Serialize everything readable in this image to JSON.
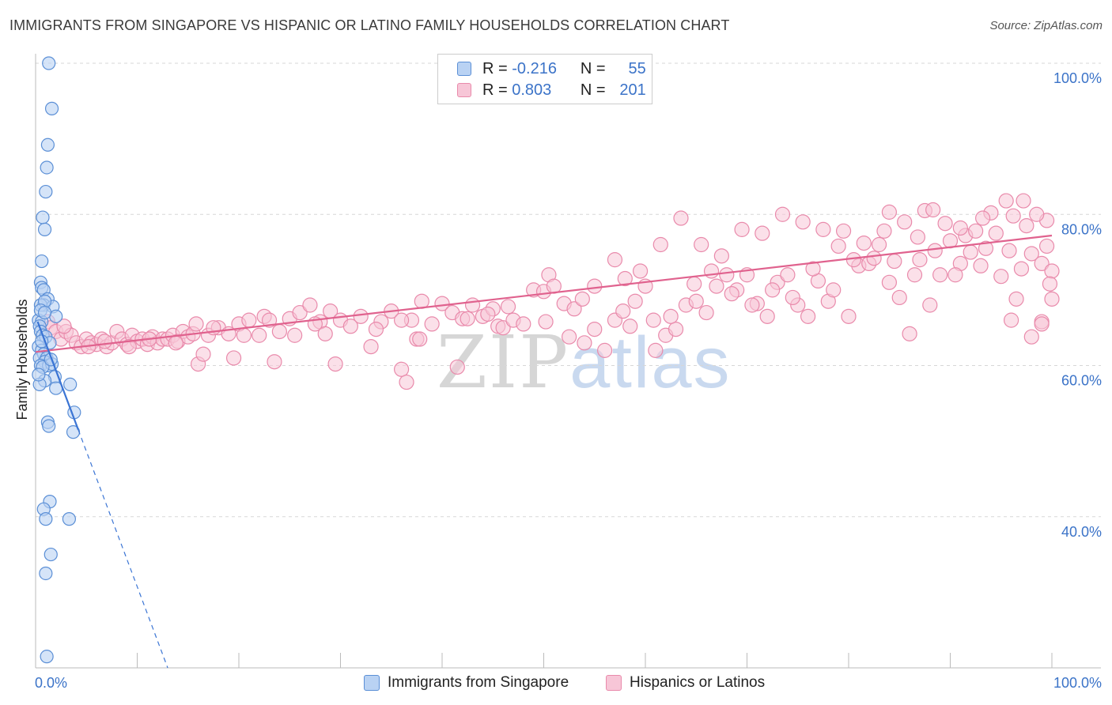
{
  "title": "IMMIGRANTS FROM SINGAPORE VS HISPANIC OR LATINO FAMILY HOUSEHOLDS CORRELATION CHART",
  "source": "Source: ZipAtlas.com",
  "watermark": {
    "zip": "ZIP",
    "atlas": "atlas"
  },
  "legend": {
    "rows": [
      {
        "r_label": "R =",
        "r_value": "-0.216",
        "n_label": "N =",
        "n_value": "55"
      },
      {
        "r_label": "R =",
        "r_value": "0.803",
        "n_label": "N =",
        "n_value": "201"
      }
    ]
  },
  "bottom_legend": {
    "series1": "Immigrants from Singapore",
    "series2": "Hispanics or Latinos"
  },
  "colors": {
    "blue_fill": "#b9d2f3",
    "blue_stroke": "#5b8fd6",
    "blue_line": "#3a74d4",
    "pink_fill": "#f7c6d7",
    "pink_stroke": "#e98aab",
    "pink_line": "#e0628e",
    "grid": "#d7d7d7",
    "tick_label": "#3b73c8"
  },
  "chart_data": {
    "type": "scatter",
    "title": "IMMIGRANTS FROM SINGAPORE VS HISPANIC OR LATINO FAMILY HOUSEHOLDS CORRELATION CHART",
    "xlabel": "",
    "ylabel": "Family Households",
    "xlim": [
      0,
      100
    ],
    "ylim": [
      20,
      100
    ],
    "x_tick_labels": [
      "0.0%",
      "100.0%"
    ],
    "y_ticks": [
      {
        "value": 100,
        "label": "100.0%"
      },
      {
        "value": 80,
        "label": "80.0%"
      },
      {
        "value": 60,
        "label": "60.0%"
      },
      {
        "value": 40,
        "label": "40.0%"
      }
    ],
    "series": [
      {
        "name": "Immigrants from Singapore",
        "r": -0.216,
        "n": 55,
        "trend": {
          "x0": 0.2,
          "y0": 65.8,
          "x1": 4.2,
          "y1": 51.5,
          "dash_x1": 13.0,
          "dash_y1": 20.0
        },
        "points": [
          [
            1.3,
            100.0
          ],
          [
            1.6,
            94.0
          ],
          [
            1.2,
            89.2
          ],
          [
            1.1,
            86.2
          ],
          [
            1.0,
            83.0
          ],
          [
            0.7,
            79.6
          ],
          [
            0.9,
            78.0
          ],
          [
            0.6,
            73.8
          ],
          [
            0.5,
            71.0
          ],
          [
            0.6,
            70.3
          ],
          [
            0.8,
            70.0
          ],
          [
            1.2,
            68.8
          ],
          [
            0.8,
            68.0
          ],
          [
            1.7,
            67.8
          ],
          [
            0.5,
            68.0
          ],
          [
            0.9,
            68.5
          ],
          [
            2.0,
            66.5
          ],
          [
            0.3,
            66.0
          ],
          [
            0.6,
            65.8
          ],
          [
            0.4,
            65.2
          ],
          [
            0.5,
            64.5
          ],
          [
            0.7,
            64.0
          ],
          [
            1.0,
            63.8
          ],
          [
            1.4,
            63.0
          ],
          [
            0.3,
            62.5
          ],
          [
            0.6,
            62.0
          ],
          [
            0.8,
            61.5
          ],
          [
            0.4,
            61.0
          ],
          [
            1.1,
            61.0
          ],
          [
            0.9,
            60.5
          ],
          [
            0.5,
            60.0
          ],
          [
            1.3,
            60.0
          ],
          [
            1.6,
            60.2
          ],
          [
            0.7,
            59.8
          ],
          [
            1.9,
            58.5
          ],
          [
            0.9,
            58.0
          ],
          [
            0.4,
            57.5
          ],
          [
            2.0,
            57.0
          ],
          [
            3.4,
            57.5
          ],
          [
            3.8,
            53.8
          ],
          [
            1.2,
            52.5
          ],
          [
            1.3,
            52.0
          ],
          [
            3.7,
            51.2
          ],
          [
            1.4,
            42.0
          ],
          [
            0.8,
            41.0
          ],
          [
            1.0,
            39.7
          ],
          [
            3.3,
            39.7
          ],
          [
            1.5,
            35.0
          ],
          [
            1.0,
            32.5
          ],
          [
            1.1,
            21.5
          ],
          [
            0.5,
            67.3
          ],
          [
            0.6,
            63.2
          ],
          [
            1.5,
            60.8
          ],
          [
            0.9,
            67.0
          ],
          [
            0.3,
            58.8
          ]
        ]
      },
      {
        "name": "Hispanics or Latinos",
        "r": 0.803,
        "n": 201,
        "trend": {
          "x0": 0.0,
          "y0": 61.8,
          "x1": 100.0,
          "y1": 77.2
        },
        "points": [
          [
            1.2,
            65.8
          ],
          [
            1.5,
            65.0
          ],
          [
            2.0,
            64.5
          ],
          [
            2.5,
            63.5
          ],
          [
            3.0,
            64.5
          ],
          [
            3.5,
            64.0
          ],
          [
            4.0,
            63.0
          ],
          [
            4.5,
            62.5
          ],
          [
            5.0,
            63.5
          ],
          [
            5.5,
            63.0
          ],
          [
            6.0,
            62.8
          ],
          [
            6.5,
            63.5
          ],
          [
            7.0,
            62.5
          ],
          [
            7.5,
            63.0
          ],
          [
            8.0,
            64.5
          ],
          [
            8.5,
            63.5
          ],
          [
            9.0,
            62.8
          ],
          [
            9.5,
            64.0
          ],
          [
            10.0,
            63.2
          ],
          [
            10.5,
            63.5
          ],
          [
            11.0,
            62.8
          ],
          [
            11.5,
            63.8
          ],
          [
            12.0,
            63.0
          ],
          [
            12.5,
            63.5
          ],
          [
            13.0,
            63.5
          ],
          [
            13.5,
            64.0
          ],
          [
            14.0,
            63.2
          ],
          [
            14.5,
            64.5
          ],
          [
            15.0,
            63.8
          ],
          [
            15.5,
            64.2
          ],
          [
            16.0,
            60.2
          ],
          [
            16.5,
            61.5
          ],
          [
            17.0,
            64.0
          ],
          [
            18.0,
            65.0
          ],
          [
            19.0,
            64.2
          ],
          [
            20.0,
            65.5
          ],
          [
            21.0,
            66.0
          ],
          [
            22.0,
            64.0
          ],
          [
            22.5,
            66.5
          ],
          [
            23.5,
            60.5
          ],
          [
            24.0,
            64.5
          ],
          [
            25.0,
            66.2
          ],
          [
            26.0,
            67.0
          ],
          [
            27.0,
            68.0
          ],
          [
            28.0,
            65.8
          ],
          [
            28.5,
            64.2
          ],
          [
            29.0,
            67.2
          ],
          [
            30.0,
            66.0
          ],
          [
            31.0,
            65.2
          ],
          [
            32.0,
            66.5
          ],
          [
            33.0,
            62.5
          ],
          [
            34.0,
            65.8
          ],
          [
            35.0,
            67.2
          ],
          [
            36.0,
            59.5
          ],
          [
            36.5,
            57.8
          ],
          [
            37.0,
            66.0
          ],
          [
            37.5,
            63.5
          ],
          [
            38.0,
            68.5
          ],
          [
            39.0,
            65.5
          ],
          [
            40.0,
            68.2
          ],
          [
            41.0,
            67.0
          ],
          [
            41.5,
            59.8
          ],
          [
            42.0,
            66.2
          ],
          [
            43.0,
            68.0
          ],
          [
            44.0,
            66.5
          ],
          [
            45.0,
            67.5
          ],
          [
            45.5,
            65.2
          ],
          [
            46.0,
            65.0
          ],
          [
            47.0,
            66.0
          ],
          [
            48.0,
            65.5
          ],
          [
            49.0,
            70.0
          ],
          [
            50.0,
            69.8
          ],
          [
            50.5,
            72.0
          ],
          [
            51.0,
            70.5
          ],
          [
            52.0,
            68.2
          ],
          [
            53.0,
            67.5
          ],
          [
            54.0,
            63.0
          ],
          [
            55.0,
            64.8
          ],
          [
            56.0,
            62.0
          ],
          [
            57.0,
            66.0
          ],
          [
            58.0,
            71.5
          ],
          [
            59.0,
            68.5
          ],
          [
            60.0,
            70.5
          ],
          [
            61.0,
            62.0
          ],
          [
            62.0,
            64.0
          ],
          [
            63.0,
            64.8
          ],
          [
            64.0,
            68.0
          ],
          [
            65.0,
            68.5
          ],
          [
            66.0,
            67.0
          ],
          [
            67.0,
            70.5
          ],
          [
            68.0,
            72.0
          ],
          [
            69.0,
            70.0
          ],
          [
            70.0,
            72.0
          ],
          [
            71.0,
            68.2
          ],
          [
            72.0,
            66.5
          ],
          [
            73.0,
            71.0
          ],
          [
            74.0,
            72.0
          ],
          [
            75.0,
            68.0
          ],
          [
            76.0,
            66.5
          ],
          [
            77.0,
            71.2
          ],
          [
            78.0,
            68.5
          ],
          [
            79.0,
            75.8
          ],
          [
            80.0,
            66.5
          ],
          [
            81.0,
            73.2
          ],
          [
            82.0,
            73.5
          ],
          [
            83.0,
            76.0
          ],
          [
            84.0,
            71.0
          ],
          [
            85.0,
            69.0
          ],
          [
            86.0,
            64.2
          ],
          [
            87.0,
            74.0
          ],
          [
            88.0,
            68.0
          ],
          [
            89.0,
            72.0
          ],
          [
            90.0,
            76.5
          ],
          [
            91.0,
            73.5
          ],
          [
            92.0,
            75.0
          ],
          [
            93.0,
            73.2
          ],
          [
            94.0,
            80.2
          ],
          [
            95.0,
            71.8
          ],
          [
            96.0,
            66.0
          ],
          [
            97.0,
            72.8
          ],
          [
            98.0,
            74.8
          ],
          [
            99.0,
            73.5
          ],
          [
            99.5,
            79.2
          ],
          [
            100.0,
            72.5
          ],
          [
            36.0,
            66.0
          ],
          [
            44.5,
            66.8
          ],
          [
            52.5,
            63.8
          ],
          [
            58.5,
            65.2
          ],
          [
            62.5,
            66.5
          ],
          [
            66.5,
            72.5
          ],
          [
            70.5,
            68.0
          ],
          [
            74.5,
            69.0
          ],
          [
            78.5,
            70.0
          ],
          [
            82.5,
            74.2
          ],
          [
            86.5,
            72.0
          ],
          [
            90.5,
            72.0
          ],
          [
            94.5,
            77.5
          ],
          [
            98.5,
            80.0
          ],
          [
            55.0,
            70.5
          ],
          [
            57.0,
            74.0
          ],
          [
            59.5,
            72.5
          ],
          [
            61.5,
            76.0
          ],
          [
            63.5,
            79.5
          ],
          [
            65.5,
            76.0
          ],
          [
            67.5,
            74.5
          ],
          [
            69.5,
            78.0
          ],
          [
            71.5,
            77.5
          ],
          [
            73.5,
            80.0
          ],
          [
            75.5,
            79.0
          ],
          [
            77.5,
            78.0
          ],
          [
            79.5,
            77.8
          ],
          [
            81.5,
            76.2
          ],
          [
            83.5,
            77.8
          ],
          [
            85.5,
            79.0
          ],
          [
            87.5,
            80.5
          ],
          [
            89.5,
            78.8
          ],
          [
            91.5,
            77.2
          ],
          [
            93.5,
            75.5
          ],
          [
            95.5,
            81.8
          ],
          [
            97.5,
            78.5
          ],
          [
            99.5,
            75.8
          ],
          [
            98.0,
            63.8
          ],
          [
            99.0,
            65.8
          ],
          [
            96.5,
            68.8
          ],
          [
            100.0,
            68.8
          ],
          [
            99.0,
            65.5
          ],
          [
            97.2,
            81.8
          ],
          [
            88.3,
            80.6
          ],
          [
            84.0,
            80.3
          ],
          [
            86.8,
            77.0
          ],
          [
            91.0,
            78.2
          ],
          [
            93.2,
            79.5
          ],
          [
            95.8,
            75.2
          ],
          [
            19.5,
            61.0
          ],
          [
            29.5,
            60.2
          ],
          [
            33.5,
            64.8
          ],
          [
            37.8,
            63.5
          ],
          [
            42.5,
            66.2
          ],
          [
            46.5,
            67.8
          ],
          [
            50.2,
            65.8
          ],
          [
            53.8,
            68.8
          ],
          [
            57.8,
            67.2
          ],
          [
            60.8,
            66.0
          ],
          [
            64.8,
            70.8
          ],
          [
            68.5,
            69.5
          ],
          [
            72.5,
            70.0
          ],
          [
            76.5,
            72.8
          ],
          [
            80.5,
            74.0
          ],
          [
            84.5,
            73.8
          ],
          [
            88.5,
            75.2
          ],
          [
            92.5,
            77.8
          ],
          [
            96.2,
            79.8
          ],
          [
            99.8,
            70.8
          ],
          [
            2.8,
            65.2
          ],
          [
            5.2,
            62.5
          ],
          [
            6.8,
            63.2
          ],
          [
            9.2,
            62.5
          ],
          [
            11.2,
            63.5
          ],
          [
            13.8,
            63.0
          ],
          [
            15.8,
            65.5
          ],
          [
            17.5,
            65.0
          ],
          [
            20.5,
            64.0
          ],
          [
            23.0,
            66.0
          ],
          [
            25.5,
            64.0
          ],
          [
            27.5,
            65.5
          ]
        ]
      }
    ]
  }
}
